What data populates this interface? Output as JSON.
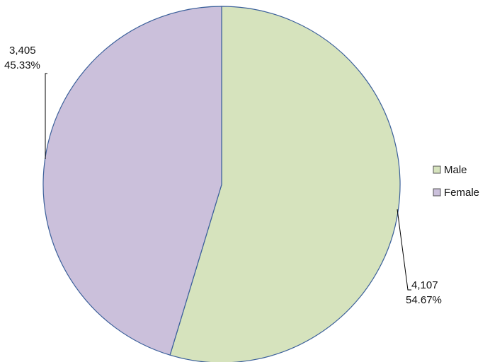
{
  "chart_data": {
    "type": "pie",
    "categories": [
      "Male",
      "Female"
    ],
    "values": [
      4107,
      3405
    ],
    "percentages": [
      "54.67%",
      "45.33%"
    ],
    "value_labels": [
      "4,107",
      "3,405"
    ],
    "colors": [
      "#D6E3BD",
      "#CBC0DB"
    ],
    "start": "12 o'clock",
    "direction": "clockwise",
    "legend": {
      "position": "right",
      "items": [
        "Male",
        "Female"
      ]
    },
    "title": ""
  }
}
